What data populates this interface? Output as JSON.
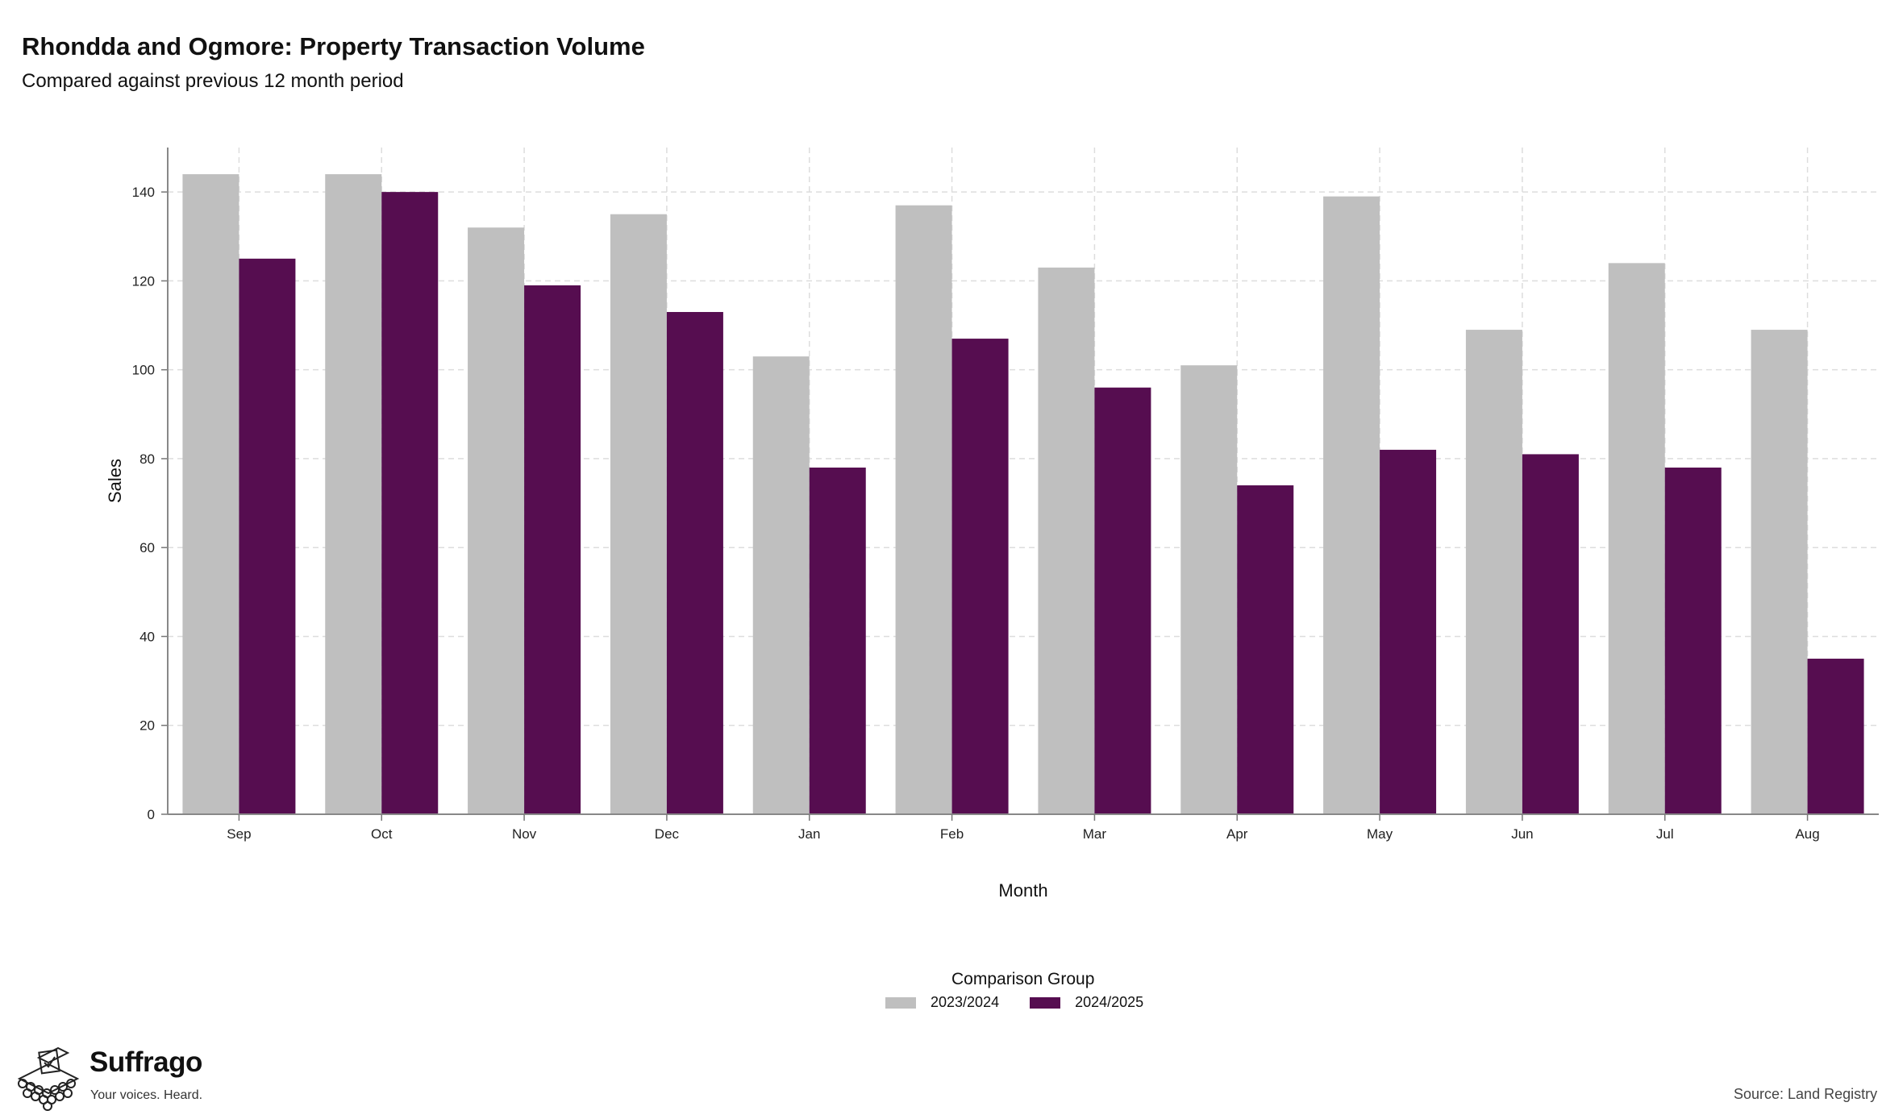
{
  "header": {
    "title": "Rhondda and Ogmore: Property Transaction Volume",
    "subtitle": "Compared against previous 12 month period"
  },
  "legend": {
    "title": "Comparison Group",
    "items": [
      {
        "label": "2023/2024",
        "color": "#bfbfbf"
      },
      {
        "label": "2024/2025",
        "color": "#560d50"
      }
    ]
  },
  "footer": {
    "brand": "Suffrago",
    "tagline": "Your voices. Heard.",
    "source": "Source: Land Registry"
  },
  "chart_data": {
    "type": "bar",
    "xlabel": "Month",
    "ylabel": "Sales",
    "ylim": [
      0,
      150
    ],
    "yticks": [
      0,
      20,
      40,
      60,
      80,
      100,
      120,
      140
    ],
    "grid": true,
    "legend_position": "bottom",
    "categories": [
      "Sep",
      "Oct",
      "Nov",
      "Dec",
      "Jan",
      "Feb",
      "Mar",
      "Apr",
      "May",
      "Jun",
      "Jul",
      "Aug"
    ],
    "series": [
      {
        "name": "2023/2024",
        "color": "#bfbfbf",
        "values": [
          144,
          144,
          132,
          135,
          103,
          137,
          123,
          101,
          139,
          109,
          124,
          109
        ]
      },
      {
        "name": "2024/2025",
        "color": "#560d50",
        "values": [
          125,
          140,
          119,
          113,
          78,
          107,
          96,
          74,
          82,
          81,
          78,
          35
        ]
      }
    ]
  }
}
